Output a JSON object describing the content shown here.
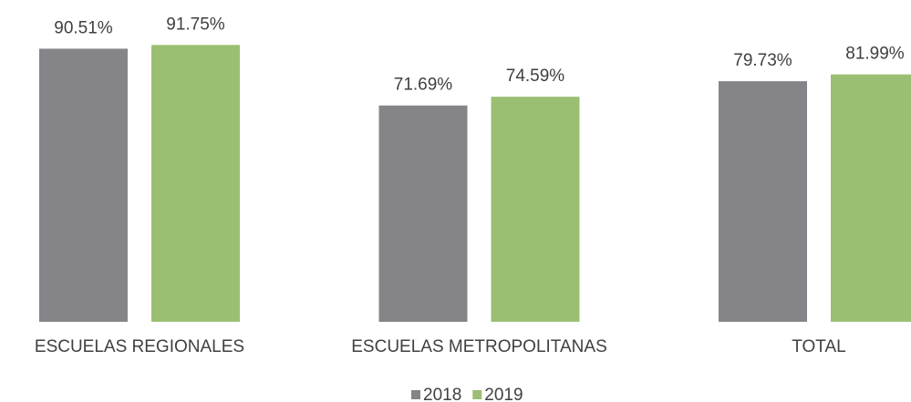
{
  "chart_data": {
    "type": "bar",
    "categories": [
      "ESCUELAS REGIONALES",
      "ESCUELAS METROPOLITANAS",
      "TOTAL"
    ],
    "series": [
      {
        "name": "2018",
        "color": "#858589",
        "values": [
          90.51,
          71.69,
          79.73
        ],
        "value_labels": [
          "90.51%",
          "71.69%",
          "79.73%"
        ]
      },
      {
        "name": "2019",
        "color": "#9bbf72",
        "values": [
          91.75,
          74.59,
          81.99
        ],
        "value_labels": [
          "91.75%",
          "74.59%",
          "81.99%"
        ]
      }
    ],
    "ylim": [
      0,
      100
    ],
    "legend": "bottom"
  }
}
